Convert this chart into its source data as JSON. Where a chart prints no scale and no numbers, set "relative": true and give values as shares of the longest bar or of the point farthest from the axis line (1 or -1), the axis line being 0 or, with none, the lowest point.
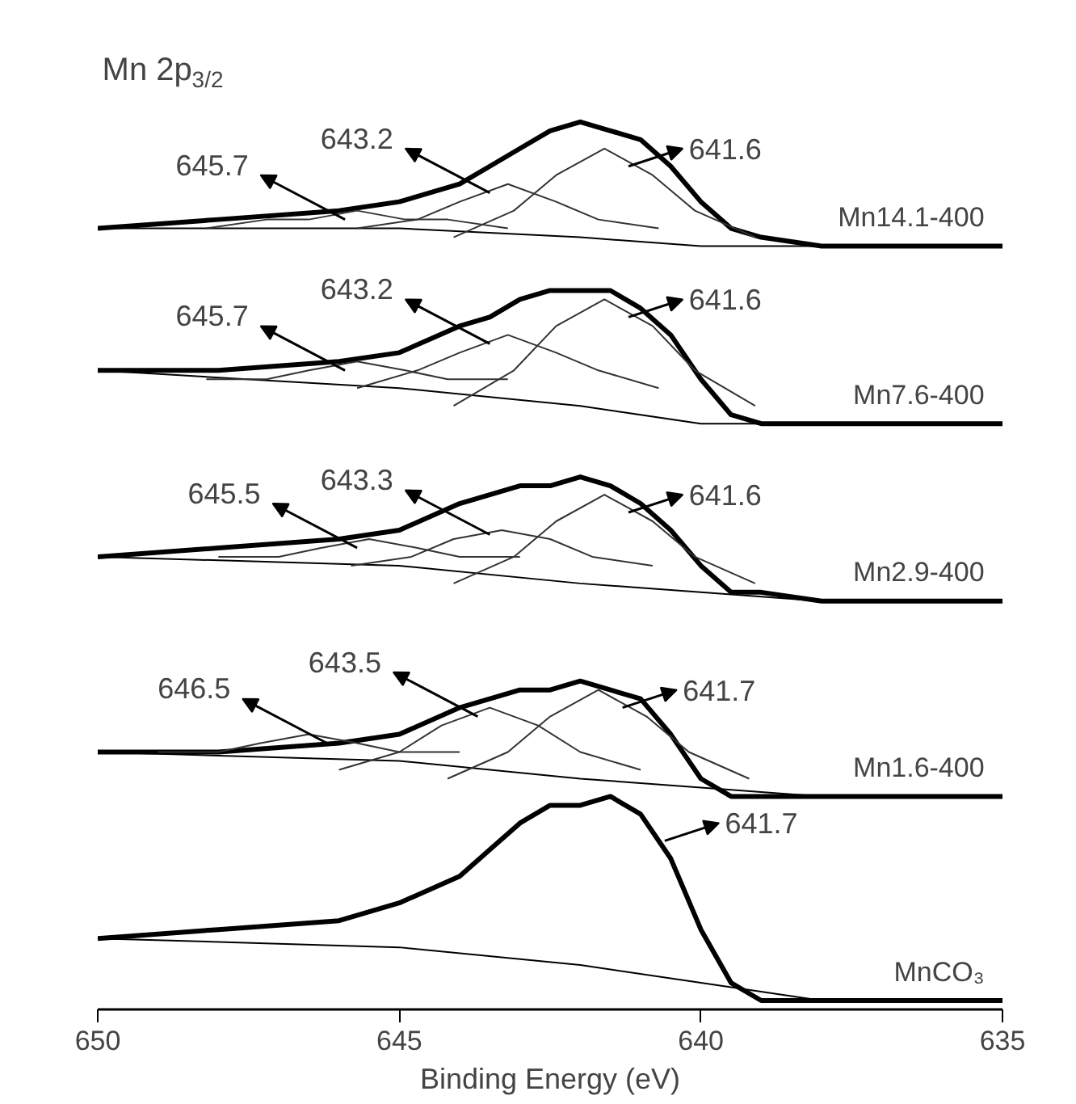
{
  "chart_data": {
    "type": "line",
    "relative": true,
    "title": "Mn 2p$_{3/2}$",
    "xlabel": "Binding Energy (eV)",
    "xlim": [
      650,
      635
    ],
    "xticks": [
      650,
      645,
      640,
      635
    ],
    "x": [
      650,
      648,
      646,
      645,
      644,
      643.5,
      643,
      642.5,
      642,
      641.5,
      641,
      640.5,
      640,
      639.5,
      639,
      638,
      636,
      635
    ],
    "series": [
      {
        "name": "Mn14.1-400",
        "color": "#000000",
        "values": [
          0.88,
          0.89,
          0.9,
          0.91,
          0.93,
          0.95,
          0.97,
          0.99,
          1.0,
          0.99,
          0.98,
          0.95,
          0.91,
          0.88,
          0.87,
          0.86,
          0.86,
          0.86
        ]
      },
      {
        "color": "#000000",
        "x": [
          650,
          645,
          642,
          640,
          638,
          635
        ],
        "values": [
          0.88,
          0.88,
          0.87,
          0.86,
          0.86,
          0.86
        ]
      },
      {
        "color": "#333333",
        "x": [
          644.1,
          643.1,
          642.4,
          641.6,
          640.8,
          640.1,
          639.1
        ],
        "values": [
          0.87,
          0.9,
          0.94,
          0.97,
          0.94,
          0.9,
          0.87
        ]
      },
      {
        "color": "#333333",
        "x": [
          645.7,
          644.7,
          644.0,
          643.2,
          642.4,
          641.7,
          640.7
        ],
        "values": [
          0.88,
          0.89,
          0.91,
          0.93,
          0.91,
          0.89,
          0.88
        ]
      },
      {
        "color": "#333333",
        "x": [
          648.2,
          647.2,
          646.5,
          645.7,
          644.9,
          644.2,
          643.2
        ],
        "values": [
          0.88,
          0.89,
          0.89,
          0.9,
          0.89,
          0.89,
          0.88
        ]
      },
      {
        "name": "Mn7.6-400",
        "color": "#000000",
        "values": [
          0.72,
          0.72,
          0.73,
          0.74,
          0.77,
          0.78,
          0.8,
          0.81,
          0.81,
          0.81,
          0.79,
          0.76,
          0.71,
          0.67,
          0.66,
          0.66,
          0.66,
          0.66
        ]
      },
      {
        "color": "#000000",
        "x": [
          650,
          645,
          642,
          640,
          638,
          635
        ],
        "values": [
          0.72,
          0.7,
          0.68,
          0.66,
          0.66,
          0.66
        ]
      },
      {
        "color": "#333333",
        "x": [
          644.1,
          643.1,
          642.4,
          641.6,
          640.8,
          640.1,
          639.1
        ],
        "values": [
          0.68,
          0.72,
          0.77,
          0.8,
          0.77,
          0.72,
          0.68
        ]
      },
      {
        "color": "#333333",
        "x": [
          645.7,
          644.7,
          644.0,
          643.2,
          642.4,
          641.7,
          640.7
        ],
        "values": [
          0.7,
          0.72,
          0.74,
          0.76,
          0.74,
          0.72,
          0.7
        ]
      },
      {
        "color": "#333333",
        "x": [
          648.2,
          647.2,
          646.5,
          645.7,
          644.9,
          644.2,
          643.2
        ],
        "values": [
          0.71,
          0.71,
          0.72,
          0.73,
          0.72,
          0.71,
          0.71
        ]
      },
      {
        "name": "Mn2.9-400",
        "color": "#000000",
        "values": [
          0.51,
          0.52,
          0.53,
          0.54,
          0.57,
          0.58,
          0.59,
          0.59,
          0.6,
          0.59,
          0.57,
          0.54,
          0.5,
          0.47,
          0.47,
          0.46,
          0.46,
          0.46
        ]
      },
      {
        "color": "#000000",
        "x": [
          650,
          645,
          642,
          640,
          638,
          635
        ],
        "values": [
          0.51,
          0.5,
          0.48,
          0.47,
          0.46,
          0.46
        ]
      },
      {
        "color": "#333333",
        "x": [
          644.1,
          643.1,
          642.4,
          641.6,
          640.8,
          640.1,
          639.1
        ],
        "values": [
          0.48,
          0.51,
          0.55,
          0.58,
          0.55,
          0.51,
          0.48
        ]
      },
      {
        "color": "#333333",
        "x": [
          645.8,
          644.8,
          644.1,
          643.3,
          642.5,
          641.8,
          640.8
        ],
        "values": [
          0.5,
          0.51,
          0.53,
          0.54,
          0.53,
          0.51,
          0.5
        ]
      },
      {
        "color": "#333333",
        "x": [
          648.0,
          647.0,
          646.3,
          645.5,
          644.7,
          644.0,
          643.0
        ],
        "values": [
          0.51,
          0.51,
          0.52,
          0.53,
          0.52,
          0.51,
          0.51
        ]
      },
      {
        "name": "Mn1.6-400",
        "color": "#000000",
        "values": [
          0.29,
          0.29,
          0.3,
          0.31,
          0.34,
          0.35,
          0.36,
          0.36,
          0.37,
          0.36,
          0.35,
          0.31,
          0.26,
          0.24,
          0.24,
          0.24,
          0.24,
          0.24
        ]
      },
      {
        "color": "#000000",
        "x": [
          650,
          645,
          642,
          640,
          638,
          635
        ],
        "values": [
          0.29,
          0.28,
          0.26,
          0.25,
          0.24,
          0.24
        ]
      },
      {
        "color": "#333333",
        "x": [
          644.2,
          643.2,
          642.5,
          641.7,
          640.9,
          640.2,
          639.2
        ],
        "values": [
          0.26,
          0.29,
          0.33,
          0.36,
          0.33,
          0.29,
          0.26
        ]
      },
      {
        "color": "#333333",
        "x": [
          646.0,
          645.0,
          644.3,
          643.5,
          642.7,
          642.0,
          641.0
        ],
        "values": [
          0.27,
          0.29,
          0.32,
          0.34,
          0.32,
          0.29,
          0.27
        ]
      },
      {
        "color": "#333333",
        "x": [
          649.0,
          648.0,
          647.3,
          646.5,
          645.7,
          645.0,
          644.0
        ],
        "values": [
          0.29,
          0.29,
          0.3,
          0.31,
          0.3,
          0.29,
          0.29
        ]
      },
      {
        "name": "MnCO₃",
        "color": "#000000",
        "values": [
          0.08,
          0.09,
          0.1,
          0.12,
          0.15,
          0.18,
          0.21,
          0.23,
          0.23,
          0.24,
          0.22,
          0.17,
          0.09,
          0.03,
          0.01,
          0.01,
          0.01,
          0.01
        ]
      },
      {
        "color": "#000000",
        "x": [
          650,
          645,
          642,
          640,
          638,
          635
        ],
        "values": [
          0.08,
          0.07,
          0.05,
          0.03,
          0.01,
          0.01
        ]
      }
    ],
    "annotations": [
      {
        "text": "641.6",
        "x": 641.2,
        "y": 0.95
      },
      {
        "text": "643.2",
        "x": 643.5,
        "y": 0.92
      },
      {
        "text": "645.7",
        "x": 645.9,
        "y": 0.89
      },
      {
        "text": "641.6",
        "x": 641.2,
        "y": 0.78
      },
      {
        "text": "643.2",
        "x": 643.5,
        "y": 0.75
      },
      {
        "text": "645.7",
        "x": 645.9,
        "y": 0.72
      },
      {
        "text": "641.6",
        "x": 641.2,
        "y": 0.56
      },
      {
        "text": "643.3",
        "x": 643.5,
        "y": 0.535
      },
      {
        "text": "645.5",
        "x": 645.7,
        "y": 0.52
      },
      {
        "text": "641.7",
        "x": 641.3,
        "y": 0.34
      },
      {
        "text": "643.5",
        "x": 643.7,
        "y": 0.33
      },
      {
        "text": "646.5",
        "x": 646.2,
        "y": 0.3
      },
      {
        "text": "641.7",
        "x": 640.6,
        "y": 0.19
      }
    ]
  }
}
